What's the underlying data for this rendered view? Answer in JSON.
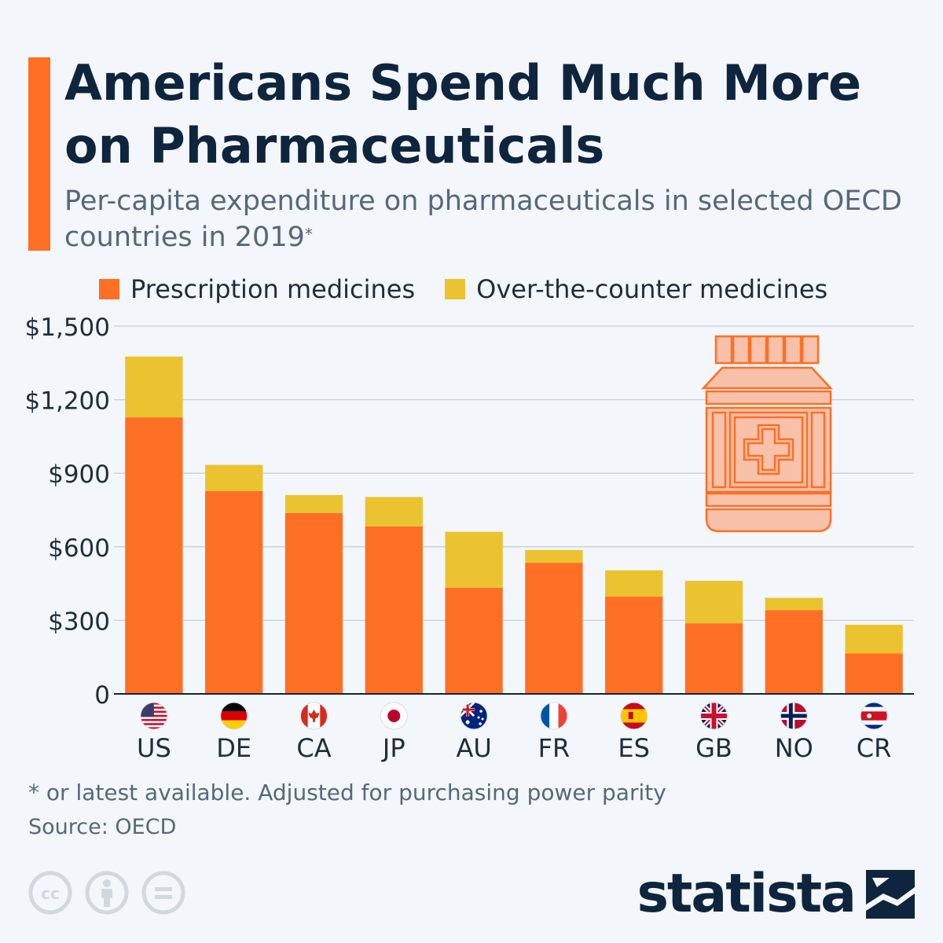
{
  "header": {
    "title": "Americans Spend Much More on Pharmaceuticals",
    "subtitle": "Per-capita expenditure on pharmaceuticals in selected OECD countries in 2019",
    "subtitle_mark": "*"
  },
  "colors": {
    "accent": "#ff6f24",
    "prescription": "#ff6f24",
    "otc": "#ebc330",
    "title": "#0f243d",
    "grid": "#c8d0d9",
    "axis_text": "#1f2d3d",
    "pill_bottle_fill": "#f8c1aa",
    "pill_bottle_stroke": "#ff6f24"
  },
  "legend": {
    "items": [
      {
        "label": "Prescription medicines",
        "color": "#ff6f24"
      },
      {
        "label": "Over-the-counter medicines",
        "color": "#ebc330"
      }
    ]
  },
  "chart_data": {
    "type": "bar",
    "stacked": true,
    "categories": [
      "US",
      "DE",
      "CA",
      "JP",
      "AU",
      "FR",
      "ES",
      "GB",
      "NO",
      "CR"
    ],
    "flags": [
      "us-flag-icon",
      "de-flag-icon",
      "ca-flag-icon",
      "jp-flag-icon",
      "au-flag-icon",
      "fr-flag-icon",
      "es-flag-icon",
      "gb-flag-icon",
      "no-flag-icon",
      "cr-flag-icon"
    ],
    "series": [
      {
        "name": "Prescription medicines",
        "values": [
          1128,
          827,
          738,
          683,
          433,
          535,
          397,
          288,
          342,
          165
        ]
      },
      {
        "name": "Over-the-counter medicines",
        "values": [
          248,
          107,
          73,
          120,
          228,
          52,
          107,
          173,
          50,
          117
        ]
      }
    ],
    "ylim": [
      0,
      1500
    ],
    "yticks": [
      0,
      300,
      600,
      900,
      1200,
      1500
    ],
    "ytick_labels": [
      "0",
      "$300",
      "$600",
      "$900",
      "$1,200",
      "$1,500"
    ],
    "grid": true,
    "legend_position": "top-left"
  },
  "footer": {
    "footnote": "* or latest available. Adjusted for purchasing power parity",
    "source": "Source: OECD",
    "brand": "statista",
    "license_icons": [
      "cc-icon",
      "attribution-icon",
      "no-derivatives-icon"
    ]
  }
}
